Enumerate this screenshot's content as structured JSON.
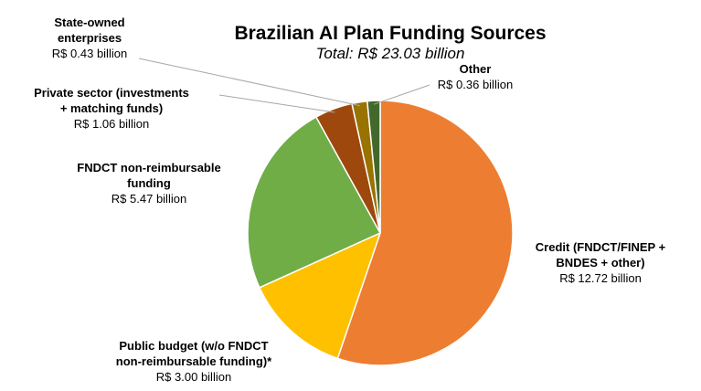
{
  "chart_data": {
    "type": "pie",
    "title": "Brazilian AI Plan Funding Sources",
    "subtitle": "Total: R$ 23.03 billion",
    "unit": "R$ billion",
    "start_angle_deg": 0,
    "direction": "clockwise",
    "slices": [
      {
        "key": "credit",
        "label_lines": [
          "Credit (FNDCT/FINEP +",
          "BNDES + other)"
        ],
        "value_text": "R$ 12.72 billion",
        "value": 12.72,
        "color": "#ED7D31"
      },
      {
        "key": "public-budget",
        "label_lines": [
          "Public budget (w/o FNDCT",
          "non-reimbursable funding)*"
        ],
        "value_text": "R$ 3.00 billion",
        "value": 3.0,
        "color": "#FFC000"
      },
      {
        "key": "fndct",
        "label_lines": [
          "FNDCT non-reimbursable",
          "funding"
        ],
        "value_text": "R$ 5.47 billion",
        "value": 5.47,
        "color": "#70AD47"
      },
      {
        "key": "private-sector",
        "label_lines": [
          "Private sector (investments",
          "+ matching funds)"
        ],
        "value_text": "R$ 1.06 billion",
        "value": 1.06,
        "color": "#9E480E"
      },
      {
        "key": "state-owned",
        "label_lines": [
          "State-owned",
          "enterprises"
        ],
        "value_text": "R$ 0.43 billion",
        "value": 0.43,
        "color": "#997300"
      },
      {
        "key": "other",
        "label_lines": [
          "Other"
        ],
        "value_text": "R$ 0.36 billion",
        "value": 0.36,
        "color": "#43682B"
      }
    ],
    "legend": "none"
  }
}
